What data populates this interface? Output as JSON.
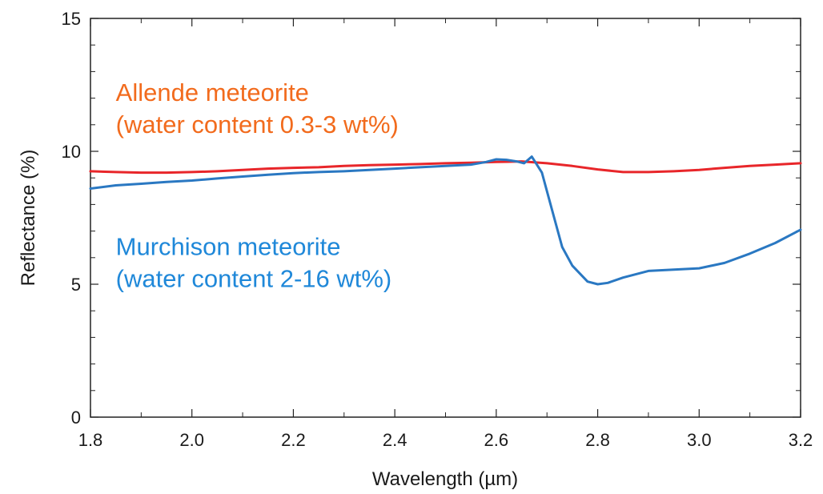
{
  "chart_data": {
    "type": "line",
    "title": "",
    "xlabel": "Wavelength (µm)",
    "ylabel": "Reflectance (%)",
    "xlim": [
      1.8,
      3.2
    ],
    "ylim": [
      0,
      15
    ],
    "x_ticks": [
      "1.8",
      "2.0",
      "2.2",
      "2.4",
      "2.6",
      "2.8",
      "3.0",
      "3.2"
    ],
    "y_ticks": [
      "0",
      "5",
      "10",
      "15"
    ],
    "grid": false,
    "legend": "none",
    "annotations": [
      {
        "lines": [
          "Allende meteorite",
          "(water content 0.3-3 wt%)"
        ],
        "color": "#f26b1d",
        "x": 1.85,
        "y": 11.9
      },
      {
        "lines": [
          "Murchison meteorite",
          "(water content 2-16 wt%)"
        ],
        "color": "#1f88d9",
        "x": 1.85,
        "y": 6.1
      }
    ],
    "series": [
      {
        "color": "#e8262a",
        "x": [
          1.8,
          1.85,
          1.9,
          1.95,
          2.0,
          2.05,
          2.1,
          2.15,
          2.2,
          2.25,
          2.3,
          2.35,
          2.4,
          2.45,
          2.5,
          2.55,
          2.6,
          2.65,
          2.7,
          2.75,
          2.8,
          2.85,
          2.9,
          2.95,
          3.0,
          3.05,
          3.1,
          3.15,
          3.2
        ],
        "y": [
          9.25,
          9.22,
          9.2,
          9.2,
          9.22,
          9.25,
          9.3,
          9.35,
          9.38,
          9.4,
          9.45,
          9.48,
          9.5,
          9.52,
          9.55,
          9.57,
          9.6,
          9.62,
          9.55,
          9.45,
          9.32,
          9.22,
          9.22,
          9.25,
          9.3,
          9.38,
          9.45,
          9.5,
          9.55
        ]
      },
      {
        "color": "#2a78c2",
        "x": [
          1.8,
          1.85,
          1.9,
          1.95,
          2.0,
          2.05,
          2.1,
          2.15,
          2.2,
          2.25,
          2.3,
          2.35,
          2.4,
          2.45,
          2.5,
          2.55,
          2.58,
          2.6,
          2.62,
          2.64,
          2.655,
          2.67,
          2.69,
          2.71,
          2.73,
          2.75,
          2.78,
          2.8,
          2.82,
          2.85,
          2.9,
          2.95,
          3.0,
          3.05,
          3.1,
          3.15,
          3.2
        ],
        "y": [
          8.6,
          8.72,
          8.78,
          8.85,
          8.9,
          8.98,
          9.05,
          9.12,
          9.18,
          9.22,
          9.25,
          9.3,
          9.35,
          9.4,
          9.45,
          9.5,
          9.6,
          9.7,
          9.68,
          9.62,
          9.55,
          9.8,
          9.2,
          7.8,
          6.4,
          5.7,
          5.1,
          5.0,
          5.05,
          5.25,
          5.5,
          5.55,
          5.6,
          5.8,
          6.15,
          6.55,
          7.05
        ]
      }
    ]
  }
}
